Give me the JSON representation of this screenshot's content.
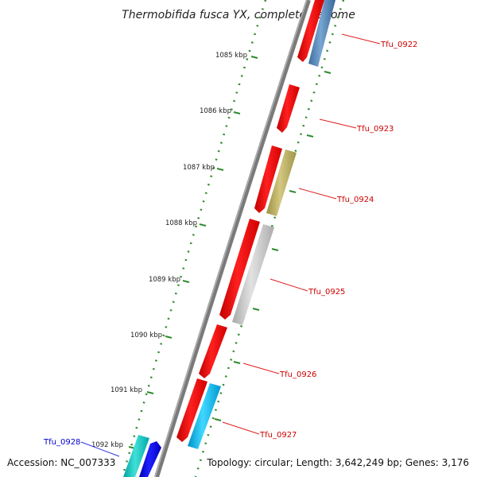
{
  "title": "Thermobifida fusca YX, complete genome",
  "footer": {
    "accession": "Accession: NC_007333",
    "summary": "Topology: circular; Length: 3,642,249 bp; Genes: 3,176"
  },
  "colors": {
    "backbone": "#7a7a7a",
    "tick_line": "#2e8b2e",
    "label_red": "#cc0000",
    "label_blue": "#0000cc",
    "callout_red": "#e02020",
    "callout_blue": "#3030e0"
  },
  "ticks": [
    {
      "label": "1085 kbp"
    },
    {
      "label": "1086 kbp"
    },
    {
      "label": "1087 kbp"
    },
    {
      "label": "1088 kbp"
    },
    {
      "label": "1089 kbp"
    },
    {
      "label": "1090 kbp"
    },
    {
      "label": "1091 kbp"
    },
    {
      "label": "1092 kbp"
    }
  ],
  "gene_labels": [
    {
      "name": "Tfu_0922"
    },
    {
      "name": "Tfu_0923"
    },
    {
      "name": "Tfu_0924"
    },
    {
      "name": "Tfu_0925"
    },
    {
      "name": "Tfu_0926"
    },
    {
      "name": "Tfu_0927"
    },
    {
      "name": "Tfu_0928"
    }
  ]
}
